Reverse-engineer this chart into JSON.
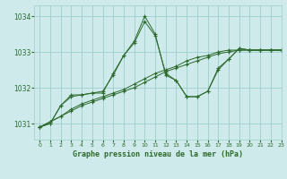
{
  "title": "Graphe pression niveau de la mer (hPa)",
  "background_color": "#ceeaea",
  "grid_color": "#9ecece",
  "line_color": "#2d6a2d",
  "xlim": [
    -0.5,
    23
  ],
  "ylim": [
    1030.55,
    1034.3
  ],
  "yticks": [
    1031,
    1032,
    1033,
    1034
  ],
  "xticks": [
    0,
    1,
    2,
    3,
    4,
    5,
    6,
    7,
    8,
    9,
    10,
    11,
    12,
    13,
    14,
    15,
    16,
    17,
    18,
    19,
    20,
    21,
    22,
    23
  ],
  "series": [
    [
      1030.9,
      1031.0,
      1031.5,
      1031.8,
      1031.8,
      1031.85,
      1031.85,
      1032.4,
      1032.9,
      1033.3,
      1034.0,
      1033.5,
      1032.35,
      1032.2,
      1031.75,
      1031.75,
      1031.9,
      1032.55,
      1032.8,
      1033.1,
      1033.05,
      1033.05,
      1033.05,
      1033.05
    ],
    [
      1030.9,
      1031.0,
      1031.5,
      1031.75,
      1031.8,
      1031.85,
      1031.9,
      1032.35,
      1032.9,
      1033.25,
      1033.85,
      1033.45,
      1032.4,
      1032.2,
      1031.75,
      1031.75,
      1031.9,
      1032.5,
      1032.8,
      1033.1,
      1033.05,
      1033.05,
      1033.05,
      1033.05
    ],
    [
      1030.9,
      1031.05,
      1031.2,
      1031.4,
      1031.55,
      1031.65,
      1031.75,
      1031.85,
      1031.95,
      1032.1,
      1032.25,
      1032.4,
      1032.5,
      1032.6,
      1032.75,
      1032.85,
      1032.9,
      1033.0,
      1033.05,
      1033.05,
      1033.05,
      1033.05,
      1033.05,
      1033.05
    ],
    [
      1030.9,
      1031.05,
      1031.2,
      1031.35,
      1031.5,
      1031.6,
      1031.7,
      1031.8,
      1031.9,
      1032.0,
      1032.15,
      1032.3,
      1032.45,
      1032.55,
      1032.65,
      1032.75,
      1032.85,
      1032.95,
      1033.0,
      1033.05,
      1033.05,
      1033.05,
      1033.05,
      1033.05
    ]
  ]
}
